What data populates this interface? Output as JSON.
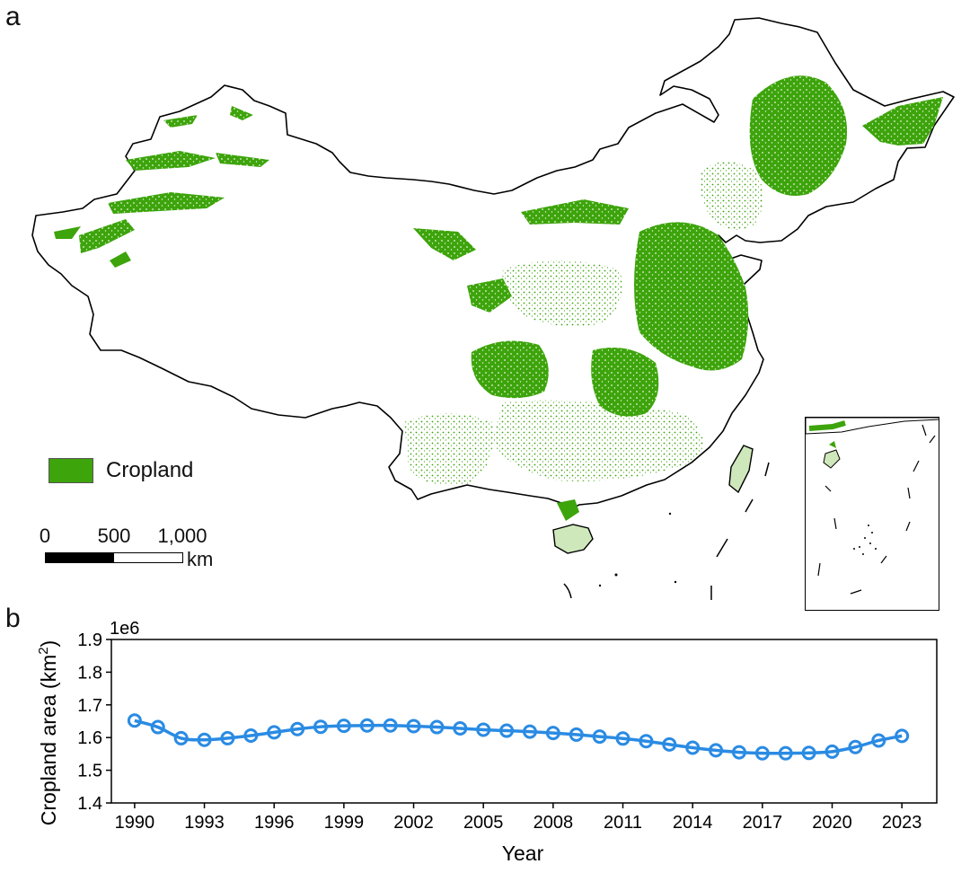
{
  "panel_a": {
    "letter": "a",
    "legend_label": "Cropland",
    "legend_color": "#3da40c",
    "scale": {
      "labels": [
        "0",
        "500",
        "1,000"
      ],
      "unit": "km"
    }
  },
  "panel_b": {
    "letter": "b"
  },
  "chart_data": {
    "type": "line",
    "title": "",
    "xlabel": "Year",
    "ylabel": "Cropland area (km",
    "ylabel_sup": "2",
    "ylabel_close": ")",
    "offset_label": "1e6",
    "color": "#2a8be3",
    "xlim": [
      1989,
      2024.5
    ],
    "ylim": [
      1.4,
      1.9
    ],
    "xticks": [
      1990,
      1993,
      1996,
      1999,
      2002,
      2005,
      2008,
      2011,
      2014,
      2017,
      2020,
      2023
    ],
    "yticks": [
      "1.4",
      "1.5",
      "1.6",
      "1.7",
      "1.8",
      "1.9"
    ],
    "ytick_values": [
      1.4,
      1.5,
      1.6,
      1.7,
      1.8,
      1.9
    ],
    "x": [
      1990,
      1991,
      1992,
      1993,
      1994,
      1995,
      1996,
      1997,
      1998,
      1999,
      2000,
      2001,
      2002,
      2003,
      2004,
      2005,
      2006,
      2007,
      2008,
      2009,
      2010,
      2011,
      2012,
      2013,
      2014,
      2015,
      2016,
      2017,
      2018,
      2019,
      2020,
      2021,
      2022,
      2023
    ],
    "y": [
      1.652,
      1.632,
      1.598,
      1.593,
      1.598,
      1.606,
      1.616,
      1.626,
      1.633,
      1.636,
      1.637,
      1.637,
      1.635,
      1.632,
      1.628,
      1.624,
      1.621,
      1.618,
      1.614,
      1.609,
      1.603,
      1.597,
      1.589,
      1.579,
      1.569,
      1.561,
      1.555,
      1.552,
      1.552,
      1.553,
      1.557,
      1.571,
      1.591,
      1.605
    ]
  }
}
